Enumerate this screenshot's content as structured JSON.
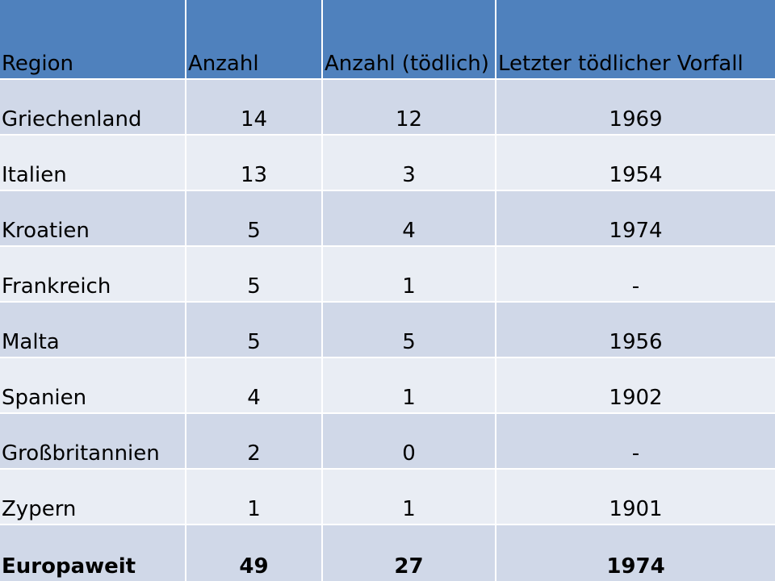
{
  "table": {
    "header": {
      "region": "Region",
      "count": "Anzahl",
      "count_fatal": "Anzahl (tödlich)",
      "last_fatal": "Letzter tödlicher Vorfall"
    },
    "rows": [
      {
        "region": "Griechenland",
        "count": "14",
        "count_fatal": "12",
        "last_fatal": "1969"
      },
      {
        "region": "Italien",
        "count": "13",
        "count_fatal": "3",
        "last_fatal": "1954"
      },
      {
        "region": "Kroatien",
        "count": "5",
        "count_fatal": "4",
        "last_fatal": "1974"
      },
      {
        "region": "Frankreich",
        "count": "5",
        "count_fatal": "1",
        "last_fatal": "-"
      },
      {
        "region": "Malta",
        "count": "5",
        "count_fatal": "5",
        "last_fatal": "1956"
      },
      {
        "region": "Spanien",
        "count": "4",
        "count_fatal": "1",
        "last_fatal": "1902"
      },
      {
        "region": "Großbritannien",
        "count": "2",
        "count_fatal": "0",
        "last_fatal": "-"
      },
      {
        "region": "Zypern",
        "count": "1",
        "count_fatal": "1",
        "last_fatal": "1901"
      }
    ],
    "total": {
      "region": "Europaweit",
      "count": "49",
      "count_fatal": "27",
      "last_fatal": "1974"
    }
  },
  "colors": {
    "header_bg": "#4f81bd",
    "row_band_dark": "#d0d8e8",
    "row_band_light": "#e9edf4"
  }
}
